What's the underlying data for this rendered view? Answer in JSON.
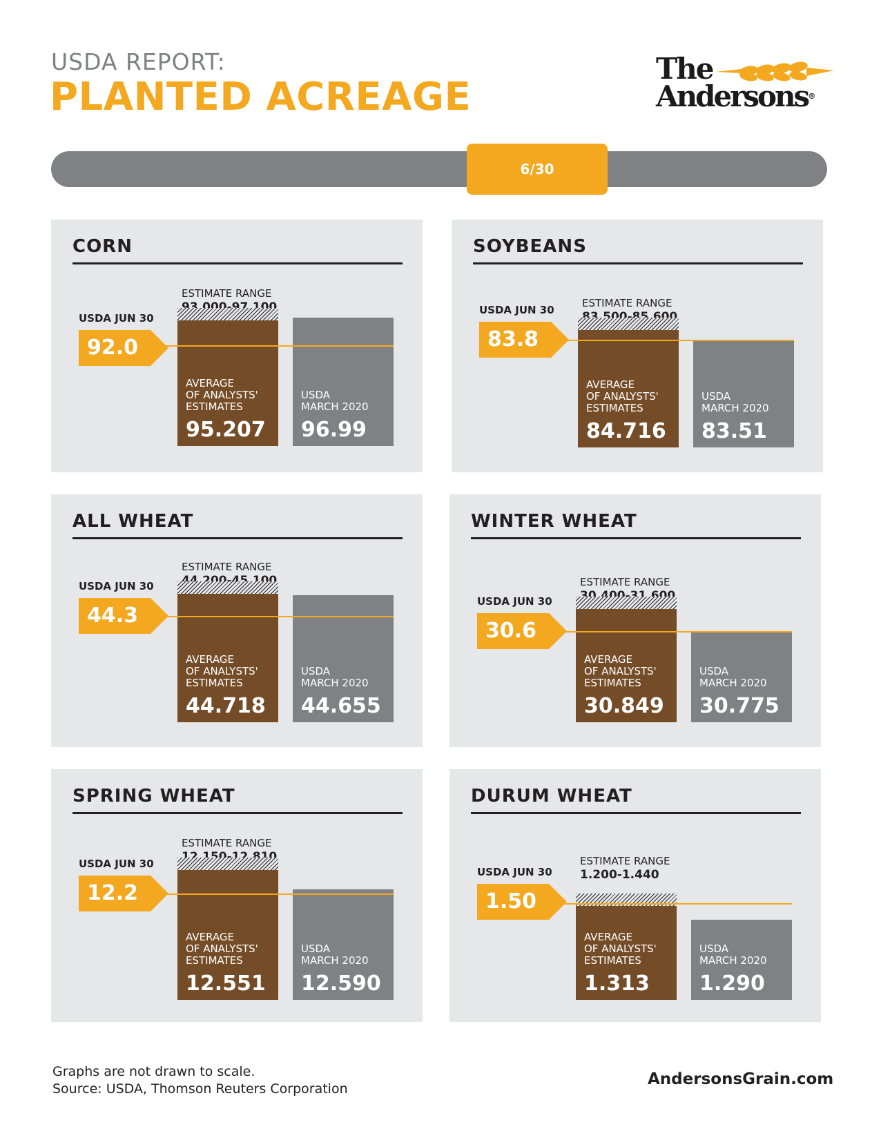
{
  "header": {
    "subtitle": "USDA REPORT:",
    "title": "PLANTED ACREAGE",
    "logo_line1": "The",
    "logo_line2": "Andersons",
    "date_tag": "6/30"
  },
  "labels": {
    "usda_label": "USDA JUN 30",
    "range_label": "ESTIMATE RANGE",
    "avg_caption": [
      "AVERAGE",
      "OF ANALYSTS'",
      "ESTIMATES"
    ],
    "march_caption": [
      "USDA",
      "MARCH 2020"
    ]
  },
  "colors": {
    "accent": "#f3a81f",
    "average_bar": "#754c28",
    "march_bar": "#808184",
    "panel_bg": "#e6e7e8"
  },
  "chart_data": [
    {
      "type": "bar",
      "title": "CORN",
      "usda_jun30": "92.0",
      "estimate_range": "93.000-97.100",
      "average_estimate": "95.207",
      "usda_march_2020": "96.99"
    },
    {
      "type": "bar",
      "title": "SOYBEANS",
      "usda_jun30": "83.8",
      "estimate_range": "83.500-85.600",
      "average_estimate": "84.716",
      "usda_march_2020": "83.51"
    },
    {
      "type": "bar",
      "title": "ALL WHEAT",
      "usda_jun30": "44.3",
      "estimate_range": "44.200-45.100",
      "average_estimate": "44.718",
      "usda_march_2020": "44.655"
    },
    {
      "type": "bar",
      "title": "WINTER WHEAT",
      "usda_jun30": "30.6",
      "estimate_range": "30.400-31.600",
      "average_estimate": "30.849",
      "usda_march_2020": "30.775"
    },
    {
      "type": "bar",
      "title": "SPRING WHEAT",
      "usda_jun30": "12.2",
      "estimate_range": "12.150-12.810",
      "average_estimate": "12.551",
      "usda_march_2020": "12.590"
    },
    {
      "type": "bar",
      "title": "DURUM WHEAT",
      "usda_jun30": "1.50",
      "estimate_range": "1.200-1.440",
      "average_estimate": "1.313",
      "usda_march_2020": "1.290"
    }
  ],
  "footer": {
    "note": "Graphs are not drawn to scale.",
    "source": "Source: USDA, Thomson Reuters Corporation",
    "website": "AndersonsGrain.com"
  }
}
